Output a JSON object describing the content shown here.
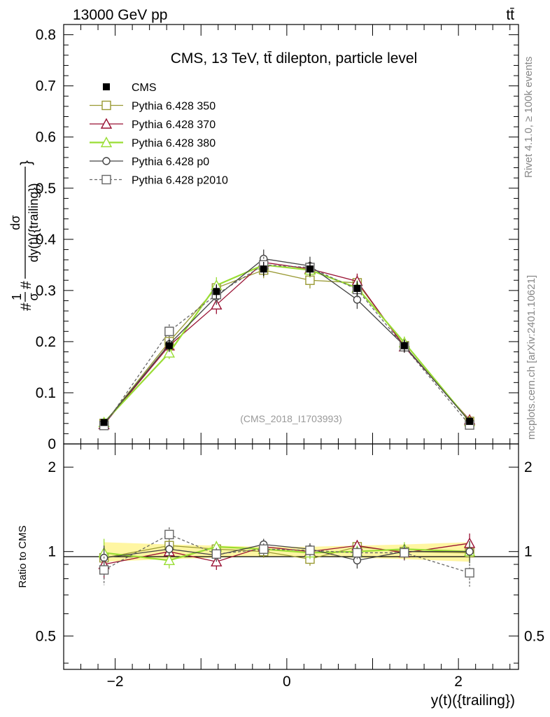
{
  "header": {
    "left": "13000 GeV pp",
    "right": "tt̄"
  },
  "side_text": {
    "rivet": "Rivet 4.1.0, ≥ 100k events",
    "mcplots": "mcplots.cern.ch [arXiv:2401.10621]"
  },
  "chart_data": [
    {
      "type": "line",
      "panel": "main",
      "title": "CMS, 13 TeV, tt̄ dilepton, particle level",
      "watermark": "(CMS_2018_I1703993)",
      "ylabel_parts": [
        "#",
        "1",
        "σ",
        "#",
        "dσ",
        "dy(t)({trailing})",
        "}"
      ],
      "xlabel": "y(t)({trailing})",
      "xlim": [
        -2.6,
        2.7
      ],
      "ylim": [
        0,
        0.82
      ],
      "yticks": [
        0.1,
        0.2,
        0.3,
        0.4,
        0.5,
        0.6,
        0.7,
        0.8
      ],
      "ytick_labels": [
        "0.1",
        "0.2",
        "0.3",
        "0.4",
        "0.5",
        "0.6",
        "0.7",
        "0.8"
      ],
      "yzero_label": "0",
      "x": [
        -2.13,
        -1.37,
        -0.82,
        -0.27,
        0.27,
        0.82,
        1.37,
        2.13
      ],
      "series": [
        {
          "name": "CMS",
          "color": "#000000",
          "marker": "filled-square",
          "values": [
            0.042,
            0.192,
            0.298,
            0.342,
            0.342,
            0.304,
            0.192,
            0.044
          ],
          "errors": [
            0.004,
            0.012,
            0.014,
            0.014,
            0.014,
            0.014,
            0.012,
            0.004
          ]
        },
        {
          "name": "Pythia 6.428 350",
          "color": "#999933",
          "marker": "open-square",
          "values": [
            0.04,
            0.2,
            0.305,
            0.34,
            0.32,
            0.315,
            0.192,
            0.044
          ],
          "errors": [
            0.005,
            0.012,
            0.014,
            0.016,
            0.016,
            0.015,
            0.012,
            0.004
          ]
        },
        {
          "name": "Pythia 6.428 370",
          "color": "#991133",
          "marker": "open-triangle",
          "values": [
            0.038,
            0.192,
            0.272,
            0.355,
            0.342,
            0.318,
            0.19,
            0.047
          ],
          "errors": [
            0.005,
            0.012,
            0.018,
            0.016,
            0.015,
            0.015,
            0.012,
            0.004
          ]
        },
        {
          "name": "Pythia 6.428 380",
          "color": "#99dd33",
          "marker": "open-triangle",
          "values": [
            0.042,
            0.178,
            0.31,
            0.35,
            0.34,
            0.305,
            0.198,
            0.044
          ],
          "errors": [
            0.005,
            0.012,
            0.016,
            0.016,
            0.015,
            0.015,
            0.012,
            0.004
          ]
        },
        {
          "name": "Pythia 6.428 p0",
          "color": "#444444",
          "marker": "open-circle",
          "values": [
            0.04,
            0.195,
            0.288,
            0.362,
            0.348,
            0.282,
            0.192,
            0.044
          ],
          "errors": [
            0.005,
            0.012,
            0.016,
            0.018,
            0.018,
            0.018,
            0.012,
            0.004
          ]
        },
        {
          "name": "Pythia 6.428 p2010",
          "color": "#666666",
          "marker": "open-square",
          "dashed": true,
          "values": [
            0.036,
            0.22,
            0.292,
            0.35,
            0.345,
            0.302,
            0.19,
            0.037
          ],
          "errors": [
            0.004,
            0.014,
            0.016,
            0.016,
            0.016,
            0.016,
            0.012,
            0.004
          ]
        }
      ]
    },
    {
      "type": "line",
      "panel": "ratio",
      "ylabel": "Ratio to CMS",
      "xlabel": "y(t)({trailing})",
      "xlim": [
        -2.6,
        2.7
      ],
      "ylim": [
        0.38,
        2.42
      ],
      "yscale": "log",
      "yticks": [
        0.5,
        1,
        2
      ],
      "ytick_labels": [
        "0.5",
        "1",
        "2"
      ],
      "xticks": [
        -2,
        0,
        2
      ],
      "xtick_labels": [
        "−2",
        "0",
        "2"
      ],
      "x": [
        -2.13,
        -1.37,
        -0.82,
        -0.27,
        0.27,
        0.82,
        1.37,
        2.13
      ],
      "band": {
        "color": "#ffee55",
        "low": [
          0.92,
          0.94,
          0.95,
          0.96,
          0.96,
          0.95,
          0.94,
          0.92
        ],
        "high": [
          1.08,
          1.06,
          1.05,
          1.04,
          1.04,
          1.05,
          1.06,
          1.08
        ]
      },
      "series": [
        {
          "name": "Pythia 6.428 350",
          "color": "#999933",
          "marker": "open-square",
          "values": [
            0.95,
            1.05,
            1.02,
            1.0,
            0.94,
            1.04,
            1.0,
            0.99
          ],
          "errors": [
            0.09,
            0.06,
            0.05,
            0.05,
            0.05,
            0.05,
            0.06,
            0.08
          ]
        },
        {
          "name": "Pythia 6.428 370",
          "color": "#991133",
          "marker": "open-triangle",
          "values": [
            0.9,
            1.0,
            0.92,
            1.04,
            1.0,
            1.05,
            0.99,
            1.07
          ],
          "errors": [
            0.1,
            0.06,
            0.06,
            0.05,
            0.05,
            0.05,
            0.06,
            0.09
          ]
        },
        {
          "name": "Pythia 6.428 380",
          "color": "#99dd33",
          "marker": "open-triangle",
          "values": [
            0.99,
            0.93,
            1.04,
            1.02,
            0.99,
            1.0,
            1.02,
            1.0
          ],
          "errors": [
            0.12,
            0.06,
            0.05,
            0.05,
            0.05,
            0.05,
            0.06,
            0.09
          ]
        },
        {
          "name": "Pythia 6.428 p0",
          "color": "#444444",
          "marker": "open-circle",
          "values": [
            0.95,
            1.02,
            0.97,
            1.06,
            1.02,
            0.93,
            1.0,
            1.0
          ],
          "errors": [
            0.1,
            0.06,
            0.05,
            0.05,
            0.05,
            0.06,
            0.06,
            0.09
          ]
        },
        {
          "name": "Pythia 6.428 p2010",
          "color": "#666666",
          "marker": "open-square",
          "dashed": true,
          "values": [
            0.86,
            1.15,
            0.98,
            1.02,
            1.01,
            0.99,
            0.99,
            0.84
          ],
          "errors": [
            0.1,
            0.07,
            0.05,
            0.05,
            0.05,
            0.05,
            0.06,
            0.09
          ]
        }
      ]
    }
  ]
}
